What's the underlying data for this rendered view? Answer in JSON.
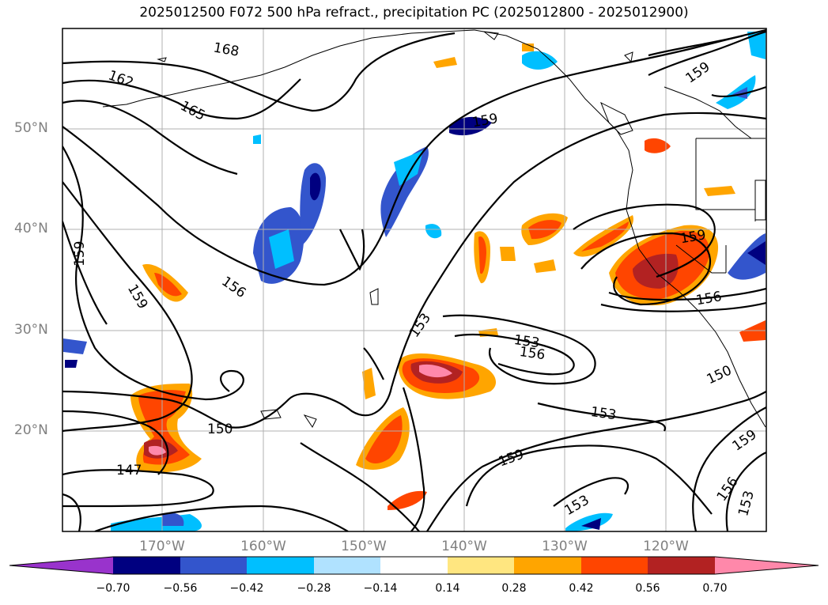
{
  "title": "2025012500 F072 500 hPa refract., precipitation PC (2025012800 - 2025012900)",
  "lat_labels": [
    {
      "text": "50°N",
      "value": 50
    },
    {
      "text": "40°N",
      "value": 40
    },
    {
      "text": "30°N",
      "value": 30
    },
    {
      "text": "20°N",
      "value": 20
    }
  ],
  "lon_labels": [
    {
      "text": "170°W",
      "value": -170
    },
    {
      "text": "160°W",
      "value": -160
    },
    {
      "text": "150°W",
      "value": -150
    },
    {
      "text": "140°W",
      "value": -140
    },
    {
      "text": "130°W",
      "value": -130
    },
    {
      "text": "120°W",
      "value": -120
    }
  ],
  "colorbar": {
    "ticks": [
      "−0.70",
      "−0.56",
      "−0.42",
      "−0.28",
      "−0.14",
      "0.14",
      "0.28",
      "0.42",
      "0.56",
      "0.70"
    ],
    "colors": [
      "#9933cc",
      "#000080",
      "#3355cc",
      "#00bfff",
      "#b0e2ff",
      "#ffffff",
      "#ffe680",
      "#ffa500",
      "#ff4500",
      "#b22222",
      "#ff88aa"
    ]
  },
  "contour_labels": [
    "168",
    "162",
    "165",
    "159",
    "159",
    "159",
    "159",
    "156",
    "156",
    "156",
    "153",
    "153",
    "153",
    "153",
    "150",
    "150",
    "147",
    "159",
    "159",
    "156",
    "153",
    "159"
  ]
}
